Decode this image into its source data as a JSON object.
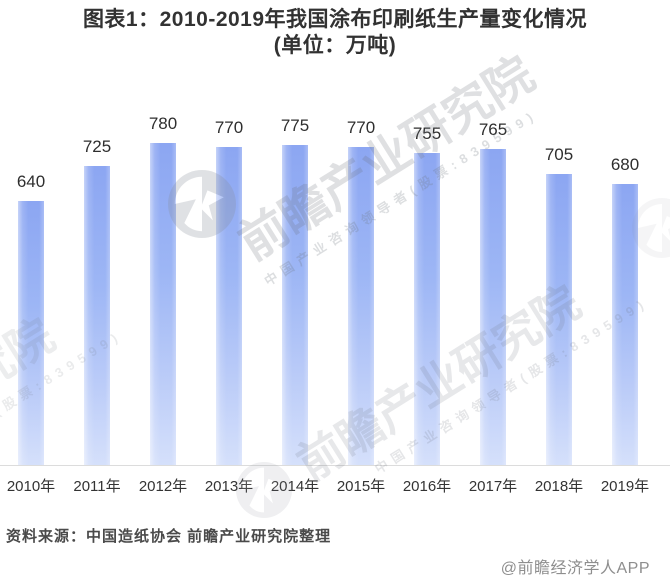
{
  "header": {
    "title_line1": "图表1：2010-2019年我国涂布印刷纸生产量变化情况",
    "title_line2": "(单位：万吨)"
  },
  "chart_data": {
    "type": "bar",
    "categories": [
      "2010年",
      "2011年",
      "2012年",
      "2013年",
      "2014年",
      "2015年",
      "2016年",
      "2017年",
      "2018年",
      "2019年"
    ],
    "values": [
      640,
      725,
      780,
      770,
      775,
      770,
      755,
      765,
      705,
      680
    ],
    "title": "图表1：2010-2019年我国涂布印刷纸生产量变化情况",
    "subtitle": "(单位：万吨)",
    "unit": "万吨",
    "xlabel": "",
    "ylabel": "",
    "ylim": [
      0,
      780
    ],
    "grid": false,
    "legend": "none",
    "value_labels_shown": true
  },
  "footer": {
    "source_note": "资料来源：中国造纸协会 前瞻产业研究院整理",
    "credit": "@前瞻经济学人APP"
  },
  "watermark": {
    "brand_text": "前瞻产业研究院",
    "tagline": "中国产业咨询领导者(股票:839599)"
  },
  "colors": {
    "title": "#323232",
    "bar_top": "#8CA6F2",
    "bar_mid": "#9DB6F5",
    "bar_low": "#BACBF8",
    "bar_bottom": "#D5E0FB",
    "axis_line": "#dcdcdc",
    "tick_label": "#333333",
    "value_label": "#2e2e2e",
    "source_text": "#4a4a4a",
    "credit_text": "#8e8e8e",
    "watermark_gray": "#6e737d"
  }
}
